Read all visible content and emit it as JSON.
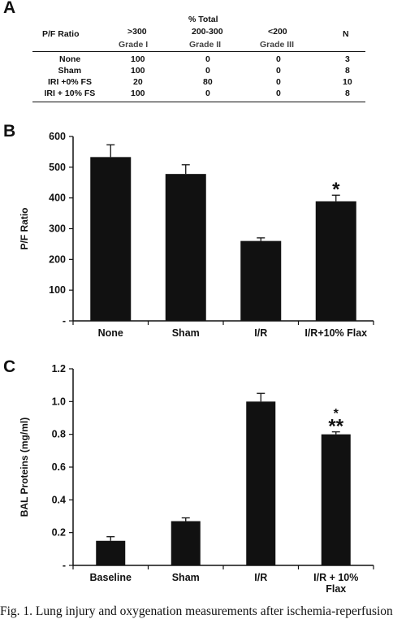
{
  "panel_a": {
    "letter": "A",
    "header": {
      "row_label": "P/F Ratio",
      "group_label": "% Total",
      "cols": [
        {
          "range": ">300",
          "grade": "Grade I"
        },
        {
          "range": "200-300",
          "grade": "Grade II"
        },
        {
          "range": "<200",
          "grade": "Grade III"
        }
      ],
      "n_label": "N"
    },
    "rows": [
      {
        "label": "None",
        "values": [
          "100",
          "0",
          "0",
          "3"
        ]
      },
      {
        "label": "Sham",
        "values": [
          "100",
          "0",
          "0",
          "8"
        ]
      },
      {
        "label": "IRI +0% FS",
        "values": [
          "20",
          "80",
          "0",
          "10"
        ]
      },
      {
        "label": "IRI + 10% FS",
        "values": [
          "100",
          "0",
          "0",
          "8"
        ]
      }
    ]
  },
  "chart_data": [
    {
      "letter": "B",
      "type": "bar",
      "categories": [
        "None",
        "Sham",
        "I/R",
        "I/R+10% Flax"
      ],
      "values": [
        533,
        478,
        260,
        389
      ],
      "errors": [
        40,
        30,
        10,
        20
      ],
      "annotations": [
        "",
        "",
        "",
        "*"
      ],
      "ylabel": "P/F Ratio",
      "ylim": [
        0,
        600
      ],
      "yticks": [
        "-",
        "100",
        "200",
        "300",
        "400",
        "500",
        "600"
      ],
      "grid": false,
      "bar_color": "#111111"
    },
    {
      "letter": "C",
      "type": "bar",
      "categories": [
        "Baseline",
        "Sham",
        "I/R",
        "I/R + 10%\nFlax"
      ],
      "values": [
        0.15,
        0.27,
        1.0,
        0.8
      ],
      "errors": [
        0.025,
        0.02,
        0.05,
        0.015
      ],
      "annotations": [
        "",
        "",
        "",
        "*\n**"
      ],
      "ylabel": "BAL Proteins (mg/ml)",
      "ylim": [
        0,
        1.2
      ],
      "yticks": [
        "-",
        "0.2",
        "0.4",
        "0.6",
        "0.8",
        "1.0",
        "1.2"
      ],
      "grid": false,
      "bar_color": "#111111"
    }
  ],
  "caption": "Fig. 1. Lung injury and oxygenation measurements after ischemia-reperfusion"
}
